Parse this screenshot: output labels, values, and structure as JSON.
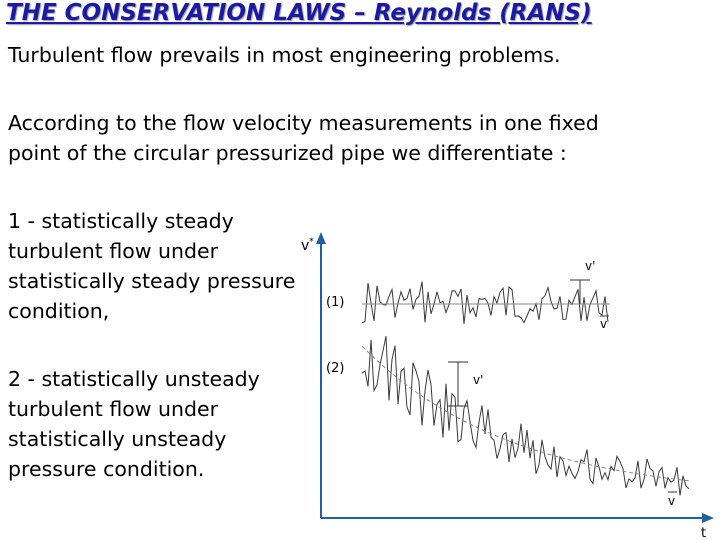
{
  "slide": {
    "title": "THE CONSERVATION LAWS – Reynolds (RANS)",
    "paragraph1": "Turbulent flow prevails in most engineering problems.",
    "paragraph2": [
      "According to the flow velocity measurements in one fixed",
      "point of the circular pressurized pipe we differentiate :"
    ],
    "item1": [
      "1 - statistically steady",
      "turbulent flow under",
      "statistically steady pressure",
      "condition,"
    ],
    "item2": [
      "2 - statistically unsteady",
      "turbulent flow under",
      "statistically unsteady",
      "pressure condition."
    ]
  },
  "figure": {
    "y_axis_label": "v",
    "y_axis_label_sup": "*",
    "x_axis_label": "t",
    "curve1_label": "(1)",
    "curve2_label": "(2)",
    "fluctuation1_label": "v'",
    "fluctuation2_label": "v'",
    "mean1_label": "v",
    "mean2_label": "v",
    "colors": {
      "title": "#1a1aa6",
      "axes": "#1f5fa8",
      "signal": "#3a3a3a"
    }
  }
}
